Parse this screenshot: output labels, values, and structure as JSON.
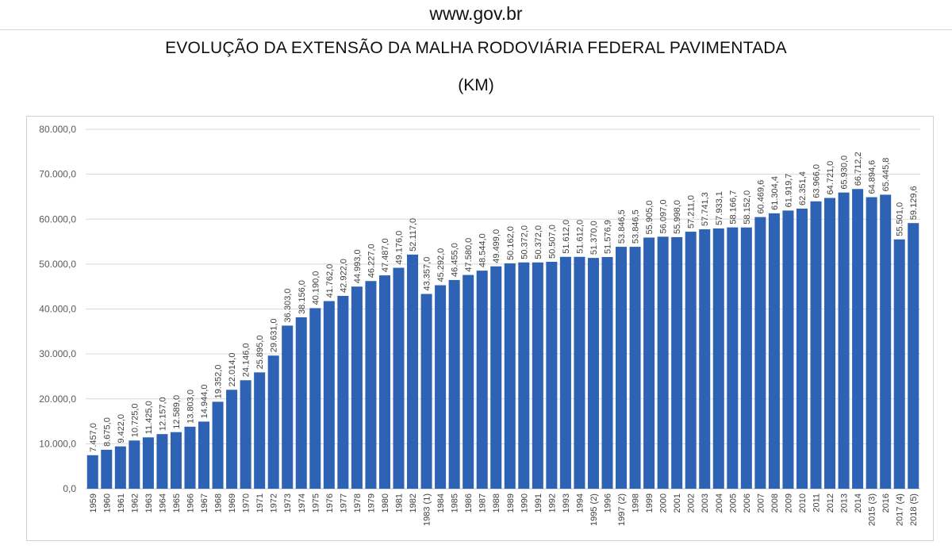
{
  "header": {
    "site": "www.gov.br"
  },
  "chart_data": {
    "type": "bar",
    "title": "EVOLUÇÃO DA EXTENSÃO DA MALHA RODOVIÁRIA FEDERAL PAVIMENTADA",
    "subtitle": "(KM)",
    "xlabel": "",
    "ylabel": "",
    "ylim": [
      0,
      80000
    ],
    "yticks": [
      0,
      10000,
      20000,
      30000,
      40000,
      50000,
      60000,
      70000,
      80000
    ],
    "ytick_labels": [
      "0,0",
      "10.000,0",
      "20.000,0",
      "30.000,0",
      "40.000,0",
      "50.000,0",
      "60.000,0",
      "70.000,0",
      "80.000,0"
    ],
    "grid": true,
    "bar_color": "#2e62b5",
    "categories": [
      "1959",
      "1960",
      "1961",
      "1962",
      "1963",
      "1964",
      "1965",
      "1966",
      "1967",
      "1968",
      "1969",
      "1970",
      "1971",
      "1972",
      "1973",
      "1974",
      "1975",
      "1976",
      "1977",
      "1978",
      "1979",
      "1980",
      "1981",
      "1982",
      "1983 (1)",
      "1984",
      "1985",
      "1986",
      "1987",
      "1988",
      "1989",
      "1990",
      "1991",
      "1992",
      "1993",
      "1994",
      "1995 (2)",
      "1996",
      "1997 (2)",
      "1998",
      "1999",
      "2000",
      "2001",
      "2002",
      "2003",
      "2004",
      "2005",
      "2006",
      "2007",
      "2008",
      "2009",
      "2010",
      "2011",
      "2012",
      "2013",
      "2014",
      "2015 (3)",
      "2016",
      "2017 (4)",
      "2018 (5)"
    ],
    "values": [
      7457.0,
      8675.0,
      9422.0,
      10725.0,
      11425.0,
      12157.0,
      12589.0,
      13803.0,
      14944.0,
      19352.0,
      22014.0,
      24146.0,
      25895.0,
      29631.0,
      36303.0,
      38156.0,
      40190.0,
      41762.0,
      42922.0,
      44993.0,
      46227.0,
      47487.0,
      49176.0,
      52117.0,
      43357.0,
      45292.0,
      46455.0,
      47580.0,
      48544.0,
      49499.0,
      50162.0,
      50372.0,
      50372.0,
      50507.0,
      51612.0,
      51612.0,
      51370.0,
      51576.9,
      53846.5,
      53846.5,
      55905.0,
      56097.0,
      55998.0,
      57211.0,
      57741.3,
      57933.1,
      58166.7,
      58152.0,
      60469.6,
      61304.4,
      61919.7,
      62351.4,
      63966.0,
      64721.0,
      65930.0,
      66712.2,
      64894.6,
      65445.8,
      55501.0,
      59129.6
    ],
    "value_labels": [
      "7.457,0",
      "8.675,0",
      "9.422,0",
      "10.725,0",
      "11.425,0",
      "12.157,0",
      "12.589,0",
      "13.803,0",
      "14.944,0",
      "19.352,0",
      "22.014,0",
      "24.146,0",
      "25.895,0",
      "29.631,0",
      "36.303,0",
      "38.156,0",
      "40.190,0",
      "41.762,0",
      "42.922,0",
      "44.993,0",
      "46.227,0",
      "47.487,0",
      "49.176,0",
      "52.117,0",
      "43.357,0",
      "45.292,0",
      "46.455,0",
      "47.580,0",
      "48.544,0",
      "49.499,0",
      "50.162,0",
      "50.372,0",
      "50.372,0",
      "50.507,0",
      "51.612,0",
      "51.612,0",
      "51.370,0",
      "51.576,9",
      "53.846,5",
      "53.846,5",
      "55.905,0",
      "56.097,0",
      "55.998,0",
      "57.211,0",
      "57.741,3",
      "57.933,1",
      "58.166,7",
      "58.152,0",
      "60.469,6",
      "61.304,4",
      "61.919,7",
      "62.351,4",
      "63.966,0",
      "64.721,0",
      "65.930,0",
      "66.712,2",
      "64.894,6",
      "65.445,8",
      "55.501,0",
      "59.129,6"
    ]
  }
}
